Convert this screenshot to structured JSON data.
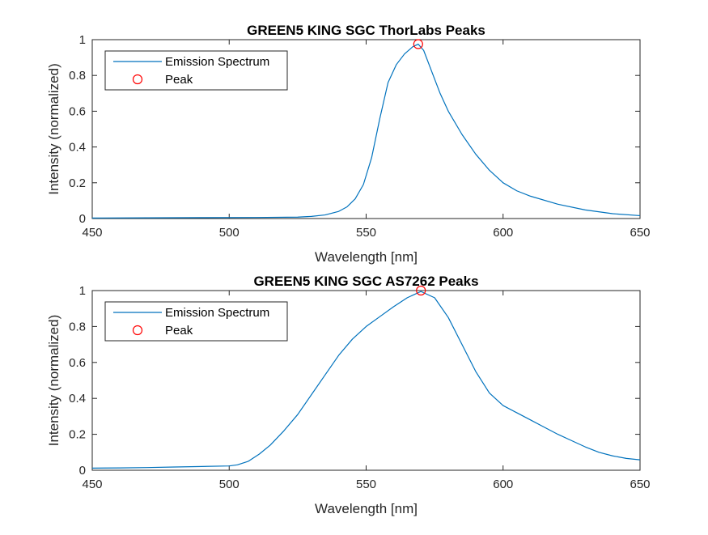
{
  "chart_data": [
    {
      "type": "line",
      "title": "GREEN5 KING SGC ThorLabs Peaks",
      "xlabel": "Wavelength [nm]",
      "ylabel": "Intensity (normalized)",
      "xlim": [
        450,
        650
      ],
      "ylim": [
        0,
        1
      ],
      "xticks": [
        450,
        500,
        550,
        600,
        650
      ],
      "yticks": [
        0,
        0.2,
        0.4,
        0.6,
        0.8,
        1
      ],
      "xtick_labels": [
        "450",
        "500",
        "550",
        "600",
        "650"
      ],
      "ytick_labels": [
        "0",
        "0.2",
        "0.4",
        "0.6",
        "0.8",
        "1"
      ],
      "grid": false,
      "legend_position": "top-left",
      "series": [
        {
          "name": "Emission Spectrum",
          "color": "#0072BD",
          "x": [
            450,
            470,
            490,
            510,
            525,
            530,
            535,
            540,
            543,
            546,
            549,
            552,
            555,
            558,
            561,
            564,
            567,
            569,
            571,
            574,
            577,
            580,
            585,
            590,
            595,
            600,
            605,
            610,
            620,
            630,
            640,
            650
          ],
          "y": [
            0.003,
            0.004,
            0.005,
            0.006,
            0.008,
            0.012,
            0.02,
            0.04,
            0.065,
            0.11,
            0.19,
            0.34,
            0.56,
            0.76,
            0.86,
            0.92,
            0.96,
            0.975,
            0.94,
            0.82,
            0.7,
            0.6,
            0.47,
            0.36,
            0.27,
            0.2,
            0.155,
            0.125,
            0.08,
            0.048,
            0.027,
            0.016
          ]
        }
      ],
      "peak": {
        "name": "Peak",
        "color": "#FF0000",
        "x": 569,
        "y": 0.975
      }
    },
    {
      "type": "line",
      "title": "GREEN5 KING SGC AS7262 Peaks",
      "xlabel": "Wavelength [nm]",
      "ylabel": "Intensity (normalized)",
      "xlim": [
        450,
        650
      ],
      "ylim": [
        0,
        1
      ],
      "xticks": [
        450,
        500,
        550,
        600,
        650
      ],
      "yticks": [
        0,
        0.2,
        0.4,
        0.6,
        0.8,
        1
      ],
      "xtick_labels": [
        "450",
        "500",
        "550",
        "600",
        "650"
      ],
      "ytick_labels": [
        "0",
        "0.2",
        "0.4",
        "0.6",
        "0.8",
        "1"
      ],
      "grid": false,
      "legend_position": "top-left",
      "series": [
        {
          "name": "Emission Spectrum",
          "color": "#0072BD",
          "x": [
            450,
            460,
            470,
            480,
            490,
            500,
            503,
            507,
            511,
            515,
            520,
            525,
            530,
            535,
            540,
            545,
            550,
            555,
            560,
            565,
            570,
            575,
            580,
            585,
            590,
            595,
            600,
            605,
            610,
            615,
            620,
            625,
            630,
            635,
            640,
            645,
            650
          ],
          "y": [
            0.012,
            0.013,
            0.015,
            0.018,
            0.021,
            0.024,
            0.03,
            0.05,
            0.09,
            0.14,
            0.22,
            0.31,
            0.42,
            0.53,
            0.64,
            0.73,
            0.8,
            0.855,
            0.91,
            0.96,
            0.995,
            0.96,
            0.85,
            0.7,
            0.55,
            0.43,
            0.36,
            0.32,
            0.28,
            0.24,
            0.2,
            0.165,
            0.13,
            0.1,
            0.08,
            0.066,
            0.058
          ]
        }
      ],
      "peak": {
        "name": "Peak",
        "color": "#FF0000",
        "x": 570,
        "y": 1.0
      }
    }
  ]
}
